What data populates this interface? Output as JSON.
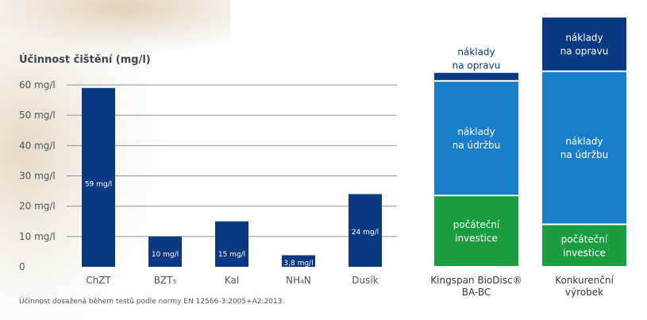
{
  "chart_data": [
    {
      "type": "bar",
      "title": "Účinnost čištění (mg/l)",
      "ylim": [
        0,
        60
      ],
      "yticks": [
        "0",
        "10 mg/l",
        "20 mg/l",
        "30 mg/l",
        "40 mg/l",
        "50 mg/l",
        "60 mg/l"
      ],
      "ytick_values": [
        0,
        10,
        20,
        30,
        40,
        50,
        60
      ],
      "grid": true,
      "categories": [
        "ChZT",
        "BZT₅",
        "Kal",
        "NH₄N",
        "Dusík"
      ],
      "values": [
        59,
        10,
        15,
        3.8,
        24
      ],
      "data_labels": [
        "59 mg/l",
        "10 mg/l",
        "15 mg/l",
        "3,8 mg/l",
        "24 mg/l"
      ],
      "bar_color": "#0b3a82",
      "footnote": "Účinnost dosažená během testů podle normy EN 12566-3:2005+A2:2013."
    },
    {
      "type": "bar",
      "stacked": true,
      "categories": [
        "Kingspan BioDisc® BA-BC",
        "Konkurenční výrobek"
      ],
      "category_lines": [
        [
          "Kingspan BioDisc®",
          "BA-BC"
        ],
        [
          "Konkurenční",
          "výrobek"
        ]
      ],
      "series": [
        {
          "name_lines": [
            "počáteční",
            "investice"
          ],
          "values": [
            29,
            17
          ],
          "color": "#1a9e3f"
        },
        {
          "name_lines": [
            "náklady",
            "na údržbu"
          ],
          "values": [
            47,
            63
          ],
          "color": "#1a7fcb"
        },
        {
          "name_lines": [
            "náklady",
            "na opravu"
          ],
          "values": [
            3,
            22
          ],
          "color": "#0b3a82"
        }
      ],
      "ylim": [
        0,
        105
      ]
    }
  ]
}
